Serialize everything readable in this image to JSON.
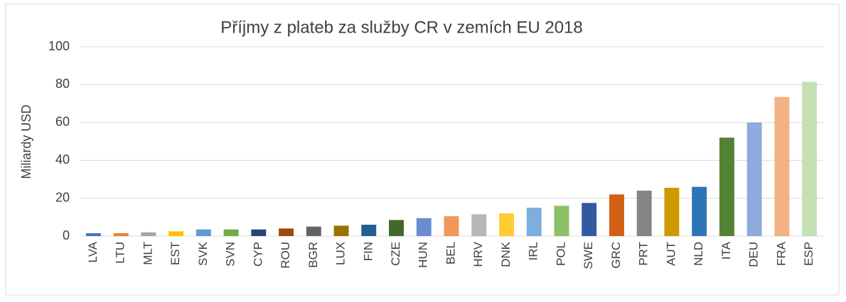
{
  "chart_data": {
    "type": "bar",
    "title": "Příjmy z plateb za služby CR v zemích EU 2018",
    "y_label": "Miliardy USD",
    "categories": [
      "LVA",
      "LTU",
      "MLT",
      "EST",
      "SVK",
      "SVN",
      "CYP",
      "ROU",
      "BGR",
      "LUX",
      "FIN",
      "CZE",
      "HUN",
      "BEL",
      "HRV",
      "DNK",
      "IRL",
      "POL",
      "SWE",
      "GRC",
      "PRT",
      "AUT",
      "NLD",
      "ITA",
      "DEU",
      "FRA",
      "ESP"
    ],
    "values": [
      1.5,
      1.5,
      2,
      2.5,
      3.5,
      3.5,
      3.5,
      4,
      5,
      5.5,
      6,
      8.5,
      9.5,
      10.5,
      11.5,
      12,
      15,
      16,
      17.5,
      22,
      24,
      25.5,
      26,
      52,
      60,
      73.5,
      81.5
    ],
    "colors": [
      "#4472c4",
      "#ed7d31",
      "#a5a5a5",
      "#ffc000",
      "#5b9bd5",
      "#70ad47",
      "#264478",
      "#9e480e",
      "#636363",
      "#997300",
      "#255e91",
      "#43682b",
      "#698ed0",
      "#f1975a",
      "#b7b7b7",
      "#ffcd33",
      "#7cafdd",
      "#8cc168",
      "#335aa1",
      "#d26012",
      "#848484",
      "#cc9a00",
      "#2e75b6",
      "#548235",
      "#8faadc",
      "#f4b183",
      "#c5e0b4"
    ],
    "ylim": [
      0,
      100
    ],
    "yticks": [
      0,
      20,
      40,
      60,
      80,
      100
    ],
    "grid": true
  }
}
